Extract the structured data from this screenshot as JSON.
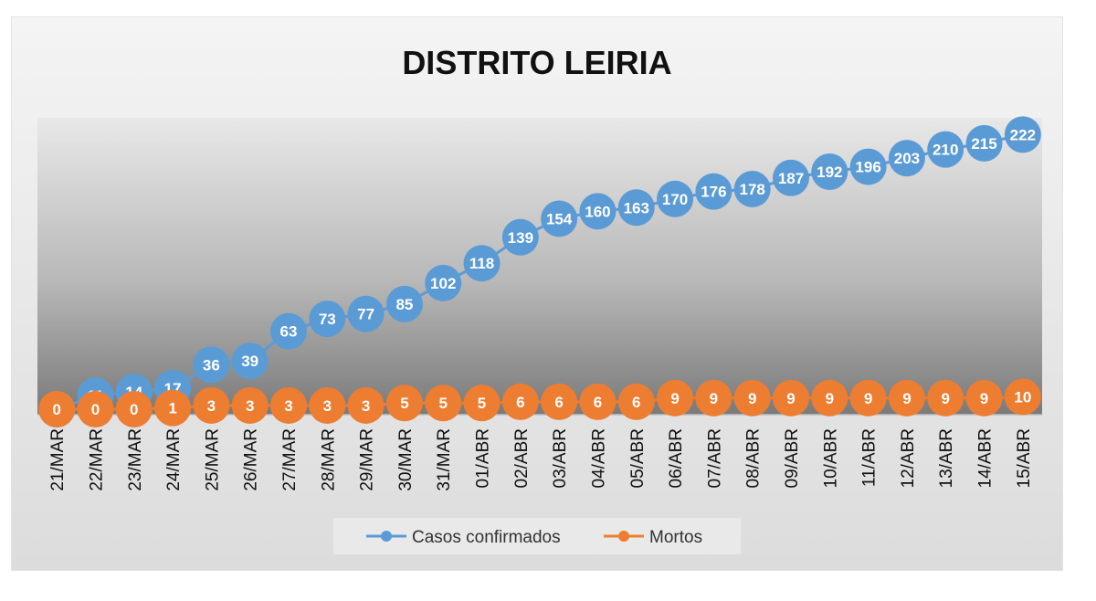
{
  "chart_data": {
    "type": "line",
    "title": "DISTRITO LEIRIA",
    "categories": [
      "21/MAR",
      "22/MAR",
      "23/MAR",
      "24/MAR",
      "25/MAR",
      "26/MAR",
      "27/MAR",
      "28/MAR",
      "29/MAR",
      "30/MAR",
      "31/MAR",
      "01/ABR",
      "02/ABR",
      "03/ABR",
      "04/ABR",
      "05/ABR",
      "06/ABR",
      "07/ABR",
      "08/ABR",
      "09/ABR",
      "10/ABR",
      "11/ABR",
      "12/ABR",
      "13/ABR",
      "14/ABR",
      "15/ABR"
    ],
    "series": [
      {
        "name": "Casos confirmados",
        "color": "#5b9bd5",
        "values": [
          0,
          11,
          14,
          17,
          36,
          39,
          63,
          73,
          77,
          85,
          102,
          118,
          139,
          154,
          160,
          163,
          170,
          176,
          178,
          187,
          192,
          196,
          203,
          210,
          215,
          222
        ]
      },
      {
        "name": "Mortos",
        "color": "#ed7d31",
        "values": [
          0,
          0,
          0,
          1,
          3,
          3,
          3,
          3,
          3,
          5,
          5,
          5,
          6,
          6,
          6,
          6,
          9,
          9,
          9,
          9,
          9,
          9,
          9,
          9,
          9,
          10
        ]
      }
    ],
    "ylim": [
      0,
      240
    ],
    "grid": false,
    "legend": "bottom"
  }
}
